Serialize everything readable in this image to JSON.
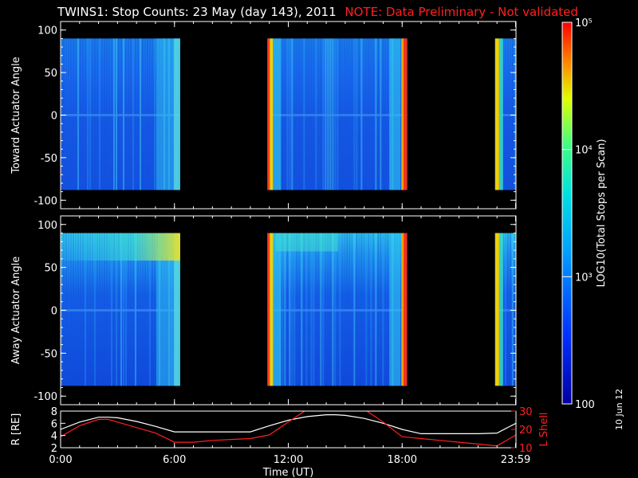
{
  "title": {
    "main": "TWINS1: Stop Counts: 23 May (day 143), 2011",
    "note": "NOTE: Data Preliminary - Not validated"
  },
  "stamp": "10 Jun 12",
  "chart_data": [
    {
      "type": "heatmap",
      "name": "toward",
      "ylabel": "Toward Actuator Angle",
      "ylim": [
        -110,
        110
      ],
      "yticks": [
        "100",
        "50",
        "0",
        "-50",
        "-100"
      ],
      "ytick_values": [
        100,
        50,
        0,
        -50,
        -100
      ],
      "data_y_range": [
        -88,
        90
      ],
      "segments": [
        {
          "x_start": 0.0,
          "x_end": 6.3
        },
        {
          "x_start": 10.9,
          "x_end": 18.25
        },
        {
          "x_start": 22.9,
          "x_end": 24.0
        }
      ]
    },
    {
      "type": "heatmap",
      "name": "away",
      "ylabel": "Away Actuator Angle",
      "ylim": [
        -110,
        110
      ],
      "yticks": [
        "100",
        "50",
        "0",
        "-50",
        "-100"
      ],
      "ytick_values": [
        100,
        50,
        0,
        -50,
        -100
      ],
      "data_y_range": [
        -88,
        90
      ],
      "segments": [
        {
          "x_start": 0.0,
          "x_end": 6.3
        },
        {
          "x_start": 10.9,
          "x_end": 18.25
        },
        {
          "x_start": 22.9,
          "x_end": 24.0
        }
      ]
    },
    {
      "type": "line",
      "name": "orbit",
      "ylabel": "R [RE]",
      "y2label": "L Shell",
      "ylim": [
        2,
        8
      ],
      "yticks": [
        "8",
        "6",
        "4",
        "2"
      ],
      "ytick_values": [
        8,
        6,
        4,
        2
      ],
      "y2lim": [
        10,
        30
      ],
      "y2ticks": [
        "30",
        "20",
        "10"
      ],
      "y2tick_values": [
        30,
        20,
        10
      ],
      "x": [
        0,
        1,
        2,
        2.5,
        3,
        4,
        5,
        6,
        7,
        8,
        9,
        10,
        11,
        12,
        13,
        14,
        14.5,
        15,
        16,
        17,
        18,
        19,
        20,
        21,
        22,
        23,
        24
      ],
      "series": [
        {
          "color": "#ffffff",
          "values": [
            5.0,
            6.2,
            7.0,
            7.0,
            6.9,
            6.3,
            5.5,
            4.6,
            4.6,
            4.6,
            4.6,
            4.6,
            5.6,
            6.5,
            7.1,
            7.4,
            7.4,
            7.3,
            6.8,
            6.0,
            5.0,
            4.3,
            4.3,
            4.3,
            4.3,
            4.4,
            6.0
          ],
          "axis": "left"
        },
        {
          "color": "#ff2020",
          "values": [
            16,
            22,
            25.5,
            25.5,
            24,
            21,
            18,
            13,
            13,
            14,
            14.5,
            15,
            17,
            24,
            31,
            31,
            31,
            31,
            31,
            24,
            16,
            15,
            14,
            13,
            12,
            11,
            17
          ],
          "axis": "right"
        }
      ],
      "xticks": [
        "0:00",
        "6:00",
        "12:00",
        "18:00",
        "23:59"
      ],
      "xtick_values": [
        0,
        6,
        12,
        18,
        23.98
      ],
      "xlim": [
        0,
        24
      ],
      "xlabel": "Time (UT)"
    }
  ],
  "colorbar": {
    "label": "LOG10(Total Stops per Scan)",
    "ticks": [
      "10⁵",
      "10⁴",
      "10³",
      "100"
    ],
    "tick_values": [
      5,
      4,
      3,
      2
    ],
    "range": [
      2,
      5
    ]
  }
}
